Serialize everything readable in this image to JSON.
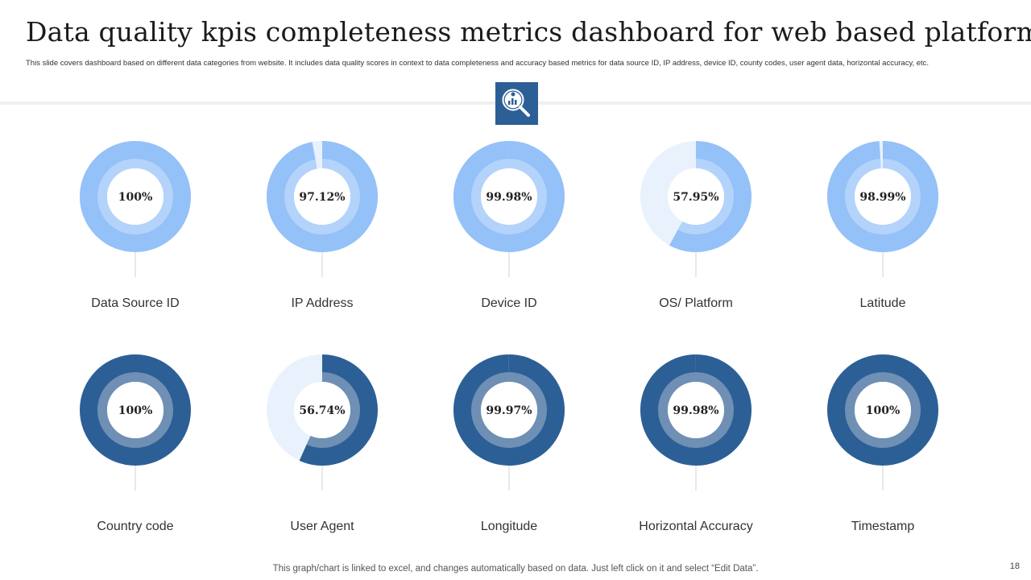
{
  "header": {
    "title": "Data quality kpis completeness metrics dashboard for web based platform",
    "subtitle": "This slide covers dashboard based on different data categories from website. It includes data quality scores in context to data completeness and accuracy based metrics for data source ID, IP  address, device ID,  county codes, user agent data, horizontal accuracy, etc.",
    "icon": "magnifier-chart-icon"
  },
  "colors": {
    "light_main": "#94c1f7",
    "light_inner": "#b3d3fa",
    "light_remainder": "#e9f2fc",
    "dark_main": "#2c5f96",
    "dark_inner": "#6f8fb4",
    "dark_remainder": "#e9f2fc",
    "light_line": "#9fc6ee",
    "dark_line": "#2c5f96"
  },
  "chart_data": {
    "type": "pie",
    "subtype": "donut",
    "unit": "%",
    "rows": [
      {
        "theme": "light",
        "items": [
          {
            "name": "Data Source ID",
            "value": 100,
            "label": "100%"
          },
          {
            "name": "IP Address",
            "value": 97.12,
            "label": "97.12%"
          },
          {
            "name": "Device ID",
            "value": 99.98,
            "label": "99.98%"
          },
          {
            "name": "OS/ Platform",
            "value": 57.95,
            "label": "57.95%"
          },
          {
            "name": "Latitude",
            "value": 98.99,
            "label": "98.99%"
          }
        ]
      },
      {
        "theme": "dark",
        "items": [
          {
            "name": "Country  code",
            "value": 100,
            "label": "100%"
          },
          {
            "name": "User Agent",
            "value": 56.74,
            "label": "56.74%"
          },
          {
            "name": "Longitude",
            "value": 99.97,
            "label": "99.97%"
          },
          {
            "name": "Horizontal Accuracy",
            "value": 99.98,
            "label": "99.98%"
          },
          {
            "name": "Timestamp",
            "value": 100,
            "label": "100%"
          }
        ]
      }
    ]
  },
  "footer": {
    "note": "This graph/chart is linked to excel,  and changes automatically based on data. Just left click on it and select “Edit Data”.",
    "page_number": "18"
  }
}
